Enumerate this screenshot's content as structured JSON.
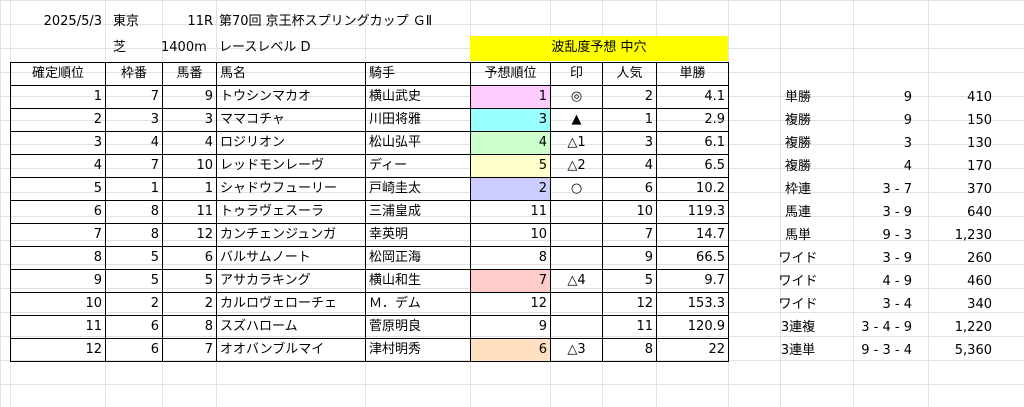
{
  "header": {
    "date": "2025/5/3",
    "venue": "東京",
    "race_no": "11R",
    "race_name": "第70回 京王杯スプリングカップ ＧⅡ",
    "surface": "芝",
    "distance": "1400m",
    "race_level": "レースレベル D",
    "forecast": "波乱度予想 中穴"
  },
  "columns": [
    "確定順位",
    "枠番",
    "馬番",
    "馬名",
    "騎手",
    "予想順位",
    "印",
    "人気",
    "単勝"
  ],
  "rows": [
    {
      "finish": "1",
      "gate": "7",
      "num": "9",
      "horse": "トウシンマカオ",
      "jockey": "横山武史",
      "pred": "1",
      "mark": "◎",
      "pop": "2",
      "odds": "4.1",
      "color": "#ffccff"
    },
    {
      "finish": "2",
      "gate": "3",
      "num": "3",
      "horse": "ママコチャ",
      "jockey": "川田将雅",
      "pred": "3",
      "mark": "▲",
      "pop": "1",
      "odds": "2.9",
      "color": "#99ffff"
    },
    {
      "finish": "3",
      "gate": "4",
      "num": "4",
      "horse": "ロジリオン",
      "jockey": "松山弘平",
      "pred": "4",
      "mark": "△1",
      "pop": "3",
      "odds": "6.1",
      "color": "#ccffcc"
    },
    {
      "finish": "4",
      "gate": "7",
      "num": "10",
      "horse": "レッドモンレーヴ",
      "jockey": "ディー",
      "pred": "5",
      "mark": "△2",
      "pop": "4",
      "odds": "6.5",
      "color": "#ffffcc"
    },
    {
      "finish": "5",
      "gate": "1",
      "num": "1",
      "horse": "シャドウフューリー",
      "jockey": "戸崎圭太",
      "pred": "2",
      "mark": "○",
      "pop": "6",
      "odds": "10.2",
      "color": "#ccccff"
    },
    {
      "finish": "6",
      "gate": "8",
      "num": "11",
      "horse": "トゥラヴェスーラ",
      "jockey": "三浦皇成",
      "pred": "11",
      "mark": "",
      "pop": "10",
      "odds": "119.3",
      "color": ""
    },
    {
      "finish": "7",
      "gate": "8",
      "num": "12",
      "horse": "カンチェンジュンガ",
      "jockey": "幸英明",
      "pred": "10",
      "mark": "",
      "pop": "7",
      "odds": "14.7",
      "color": ""
    },
    {
      "finish": "8",
      "gate": "5",
      "num": "6",
      "horse": "バルサムノート",
      "jockey": "松岡正海",
      "pred": "8",
      "mark": "",
      "pop": "9",
      "odds": "66.5",
      "color": ""
    },
    {
      "finish": "9",
      "gate": "5",
      "num": "5",
      "horse": "アサカラキング",
      "jockey": "横山和生",
      "pred": "7",
      "mark": "△4",
      "pop": "5",
      "odds": "9.7",
      "color": "#ffcccc"
    },
    {
      "finish": "10",
      "gate": "2",
      "num": "2",
      "horse": "カルロヴェローチェ",
      "jockey": "Ｍ．デム",
      "pred": "12",
      "mark": "",
      "pop": "12",
      "odds": "153.3",
      "color": ""
    },
    {
      "finish": "11",
      "gate": "6",
      "num": "8",
      "horse": "スズハローム",
      "jockey": "菅原明良",
      "pred": "9",
      "mark": "",
      "pop": "11",
      "odds": "120.9",
      "color": ""
    },
    {
      "finish": "12",
      "gate": "6",
      "num": "7",
      "horse": "オオバンブルマイ",
      "jockey": "津村明秀",
      "pred": "6",
      "mark": "△3",
      "pop": "8",
      "odds": "22",
      "color": "#ffe0c0"
    }
  ],
  "payouts": [
    {
      "type": "単勝",
      "combo": "9",
      "amount": "410"
    },
    {
      "type": "複勝",
      "combo": "9",
      "amount": "150"
    },
    {
      "type": "複勝",
      "combo": "3",
      "amount": "130"
    },
    {
      "type": "複勝",
      "combo": "4",
      "amount": "170"
    },
    {
      "type": "枠連",
      "combo": "3 - 7",
      "amount": "370"
    },
    {
      "type": "馬連",
      "combo": "3 - 9",
      "amount": "640"
    },
    {
      "type": "馬単",
      "combo": "9 - 3",
      "amount": "1,230"
    },
    {
      "type": "ワイド",
      "combo": "3 - 9",
      "amount": "260"
    },
    {
      "type": "ワイド",
      "combo": "4 - 9",
      "amount": "460"
    },
    {
      "type": "ワイド",
      "combo": "3 - 4",
      "amount": "340"
    },
    {
      "type": "3連複",
      "combo": "3 - 4 - 9",
      "amount": "1,220"
    },
    {
      "type": "3連単",
      "combo": "9 - 3 - 4",
      "amount": "5,360"
    }
  ]
}
